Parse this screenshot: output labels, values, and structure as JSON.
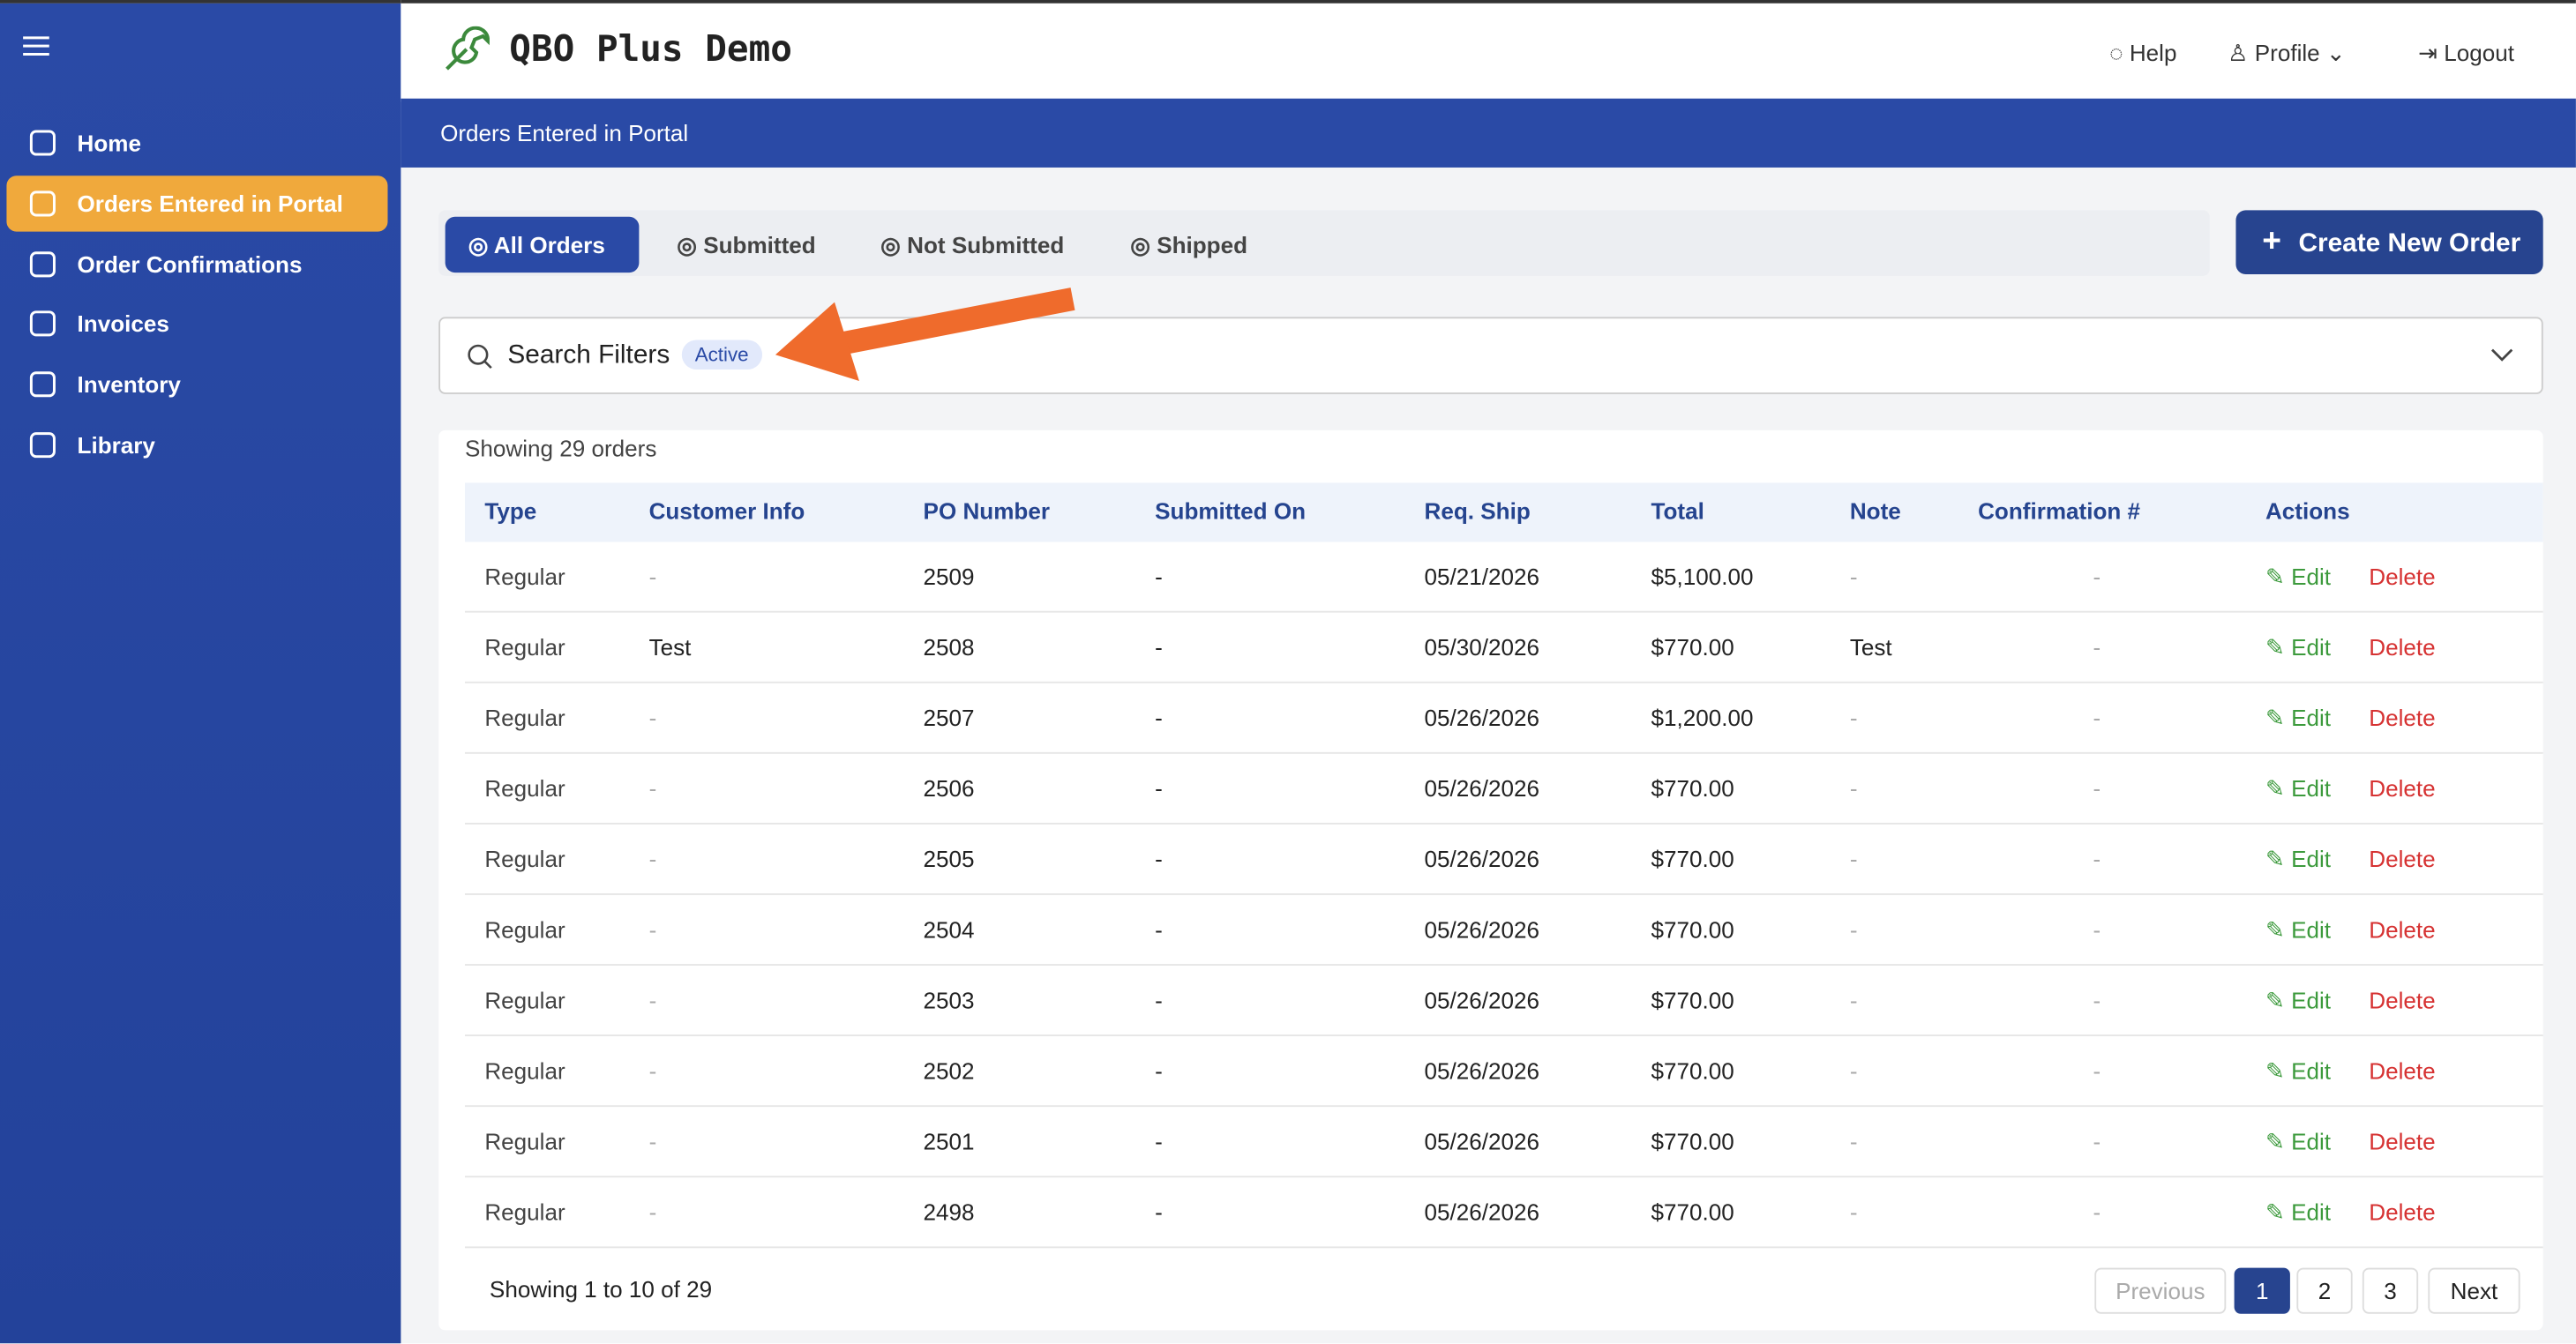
{
  "sidebar": {
    "items": [
      "Home",
      "Orders Entered in Portal",
      "Order Confirmations",
      "Invoices",
      "Inventory",
      "Library"
    ],
    "active": 1
  },
  "header": {
    "title": "QBO Plus Demo",
    "links": [
      "Help",
      "Profile",
      "Logout"
    ]
  },
  "banner": {
    "title": "Orders Entered in Portal"
  },
  "tabs": {
    "items": [
      "All Orders",
      "Submitted",
      "Not Submitted",
      "Shipped"
    ],
    "active": 0,
    "create": "Create New Order"
  },
  "filters": {
    "label": "Search Filters",
    "badge": "Active"
  },
  "table": {
    "summary": "Showing 29 orders",
    "columns": [
      "Type",
      "Customer Info",
      "PO Number",
      "Submitted On",
      "Req. Ship",
      "Total",
      "Note",
      "Confirmation #",
      "Actions"
    ],
    "actions": [
      "Edit",
      "Delete"
    ],
    "rows": [
      [
        "Regular",
        "-",
        "2509",
        "-",
        "05/21/2026",
        "$5,100.00",
        "-",
        "-"
      ],
      [
        "Regular",
        "Test",
        "2508",
        "-",
        "05/30/2026",
        "$770.00",
        "Test",
        "-"
      ],
      [
        "Regular",
        "-",
        "2507",
        "-",
        "05/26/2026",
        "$1,200.00",
        "-",
        "-"
      ],
      [
        "Regular",
        "-",
        "2506",
        "-",
        "05/26/2026",
        "$770.00",
        "-",
        "-"
      ],
      [
        "Regular",
        "-",
        "2505",
        "-",
        "05/26/2026",
        "$770.00",
        "-",
        "-"
      ],
      [
        "Regular",
        "-",
        "2504",
        "-",
        "05/26/2026",
        "$770.00",
        "-",
        "-"
      ],
      [
        "Regular",
        "-",
        "2503",
        "-",
        "05/26/2026",
        "$770.00",
        "-",
        "-"
      ],
      [
        "Regular",
        "-",
        "2502",
        "-",
        "05/26/2026",
        "$770.00",
        "-",
        "-"
      ],
      [
        "Regular",
        "-",
        "2501",
        "-",
        "05/26/2026",
        "$770.00",
        "-",
        "-"
      ],
      [
        "Regular",
        "-",
        "2498",
        "-",
        "05/26/2026",
        "$770.00",
        "-",
        "-"
      ]
    ]
  },
  "pagination": {
    "summary": "Showing 1 to 10 of 29",
    "buttons": [
      "Previous",
      "1",
      "2",
      "3",
      "Next"
    ],
    "active": 1
  }
}
